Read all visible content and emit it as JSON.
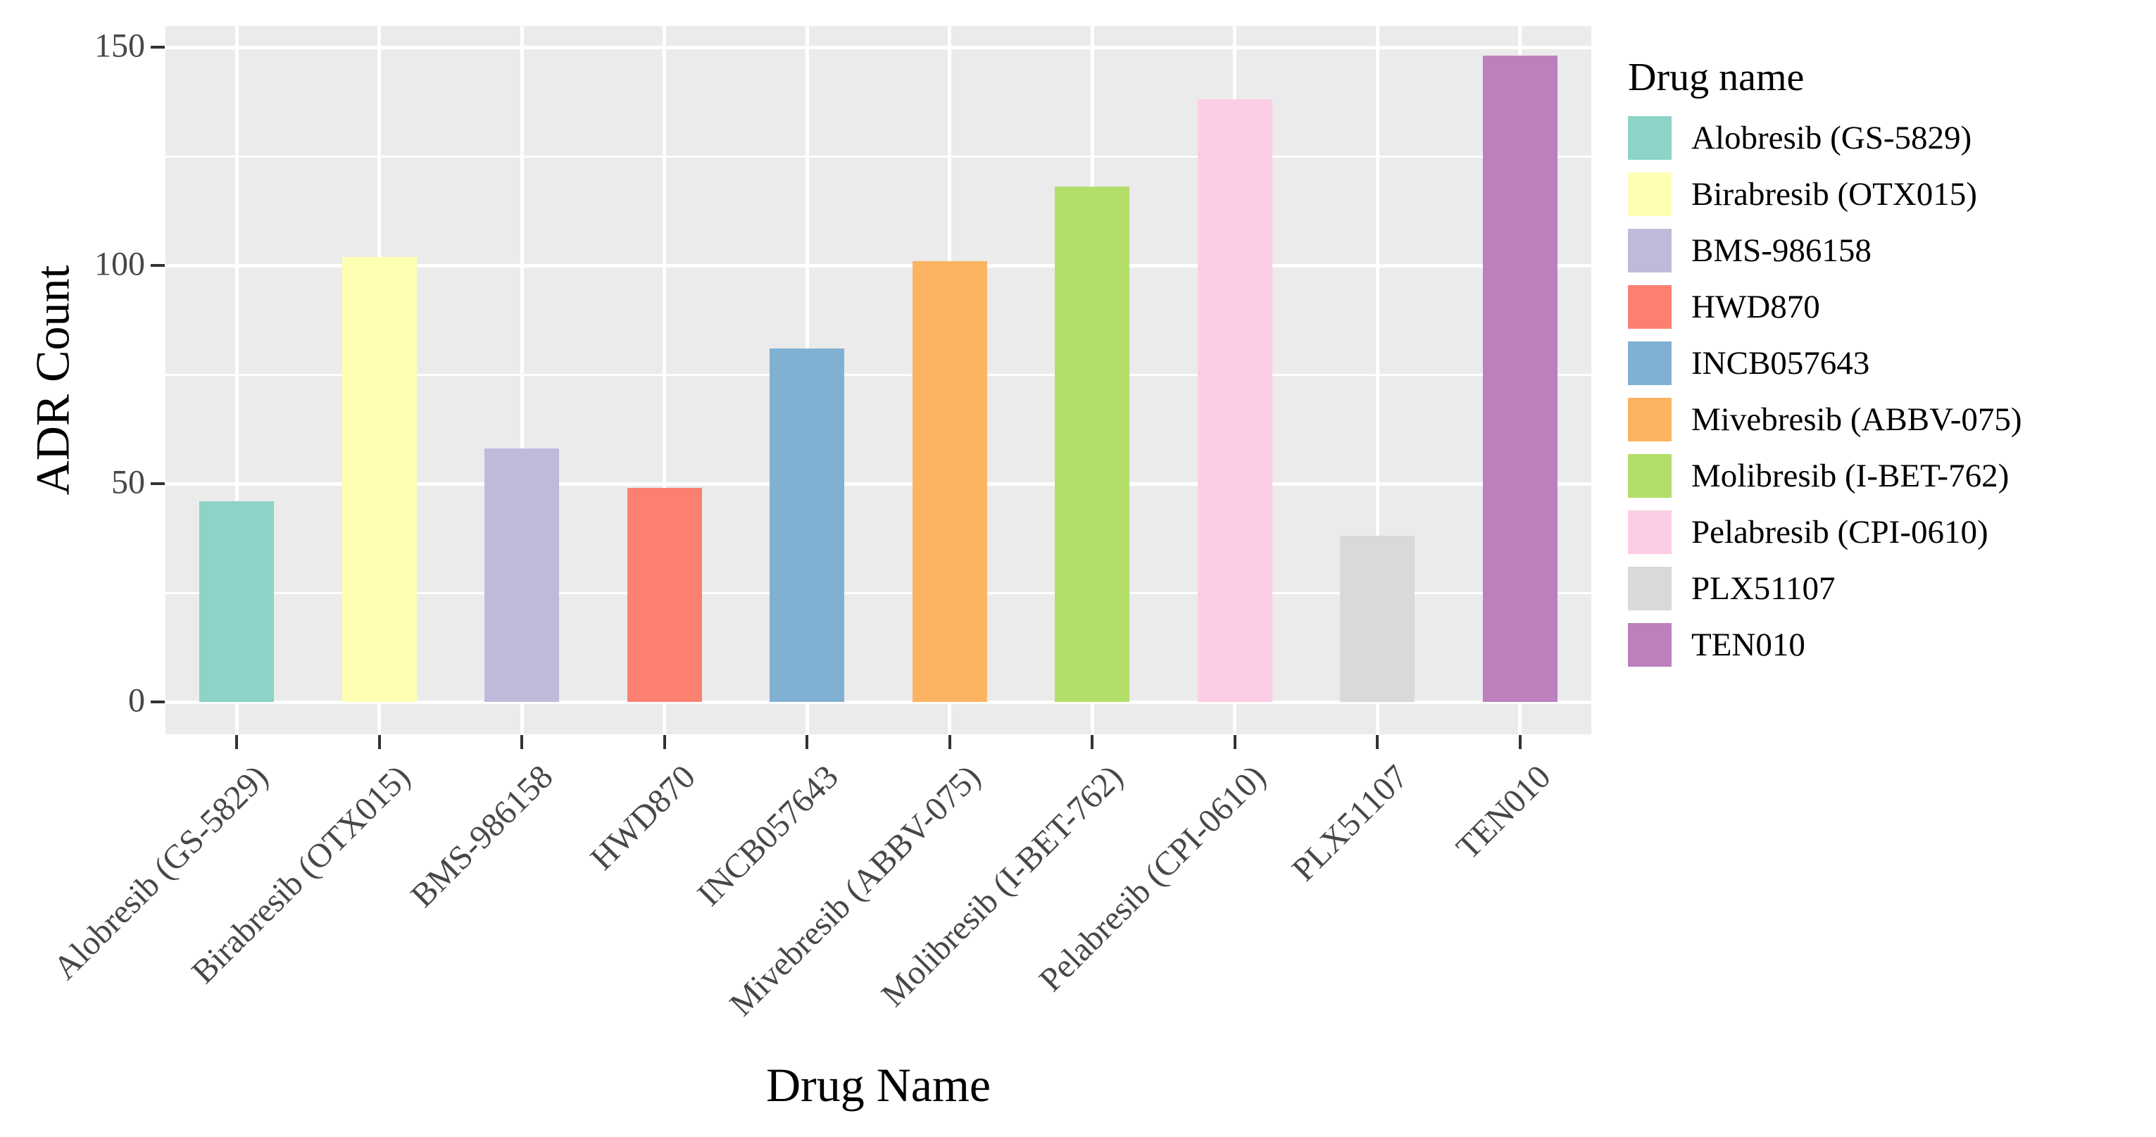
{
  "chart_data": {
    "type": "bar",
    "title": "",
    "xlabel": "Drug Name",
    "ylabel": "ADR Count",
    "legend_title": "Drug name",
    "categories": [
      "Alobresib (GS-5829)",
      "Birabresib (OTX015)",
      "BMS-986158",
      "HWD870",
      "INCB057643",
      "Mivebresib (ABBV-075)",
      "Molibresib (I-BET-762)",
      "Pelabresib (CPI-0610)",
      "PLX51107",
      "TEN010"
    ],
    "values": [
      46,
      102,
      58,
      49,
      81,
      101,
      118,
      138,
      38,
      148
    ],
    "colors": [
      "#8DD3C7",
      "#FFFFB3",
      "#BEBADA",
      "#FB8072",
      "#80B1D3",
      "#FDB462",
      "#B3DE69",
      "#FCCDE5",
      "#D9D9D9",
      "#BC80BD"
    ],
    "y_ticks": [
      0,
      50,
      100,
      150
    ],
    "y_tick_labels": [
      "0",
      "50",
      "100",
      "150"
    ],
    "y_minor_ticks": [
      25,
      75,
      125
    ],
    "ylim": [
      0,
      150
    ],
    "grid": "white major and minor gridlines on gray panel",
    "legend_position": "right",
    "panel_bg": "#EBEBEB",
    "gridline_color": "#FFFFFF",
    "tick_text_color": "#474747"
  }
}
